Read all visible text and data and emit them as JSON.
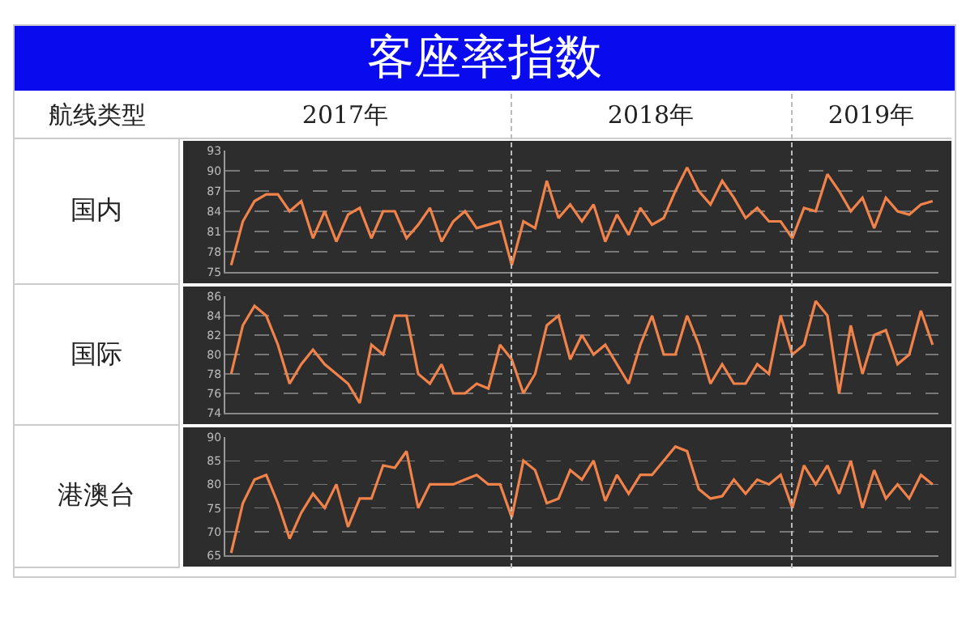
{
  "chart_data": [
    {
      "type": "line",
      "title": "客座率指数",
      "annotations": [
        "航线类型",
        "2017年",
        "2018年",
        "2019年"
      ],
      "ylabel": "国内",
      "tick_labels": "y",
      "grid": "y",
      "marker": "none",
      "line_style": "solid",
      "categories": [
        null,
        null,
        null,
        null,
        null,
        null,
        null,
        null,
        null,
        null,
        null,
        null,
        null,
        null,
        null,
        null,
        null,
        null,
        null,
        null,
        null,
        null,
        null,
        null,
        null,
        null,
        null,
        null,
        null,
        null,
        null,
        null,
        null,
        null,
        null,
        null,
        null,
        null,
        null,
        null,
        null,
        null,
        null,
        null,
        null,
        null,
        null,
        null,
        null,
        null,
        null,
        null,
        null,
        null,
        null,
        null,
        null,
        null,
        null,
        null,
        null
      ],
      "series": [
        {
          "color": "#f0824a",
          "values": [
            76,
            82.5,
            85.5,
            86.5,
            86.5,
            84,
            85.5,
            80,
            84,
            79.5,
            83.5,
            84.5,
            80,
            84,
            84,
            80,
            82,
            84.5,
            79.5,
            82.5,
            84,
            81.5,
            82,
            82.5,
            76,
            82.5,
            81.5,
            88.5,
            83,
            85,
            82.5,
            85,
            79.5,
            83.5,
            80.5,
            84.5,
            82,
            83,
            87,
            90.5,
            87,
            85,
            88.5,
            86,
            83,
            84.5,
            82.5,
            82.5,
            80,
            84.5,
            84,
            89.5,
            87,
            84,
            86,
            81.5,
            86,
            84,
            83.5,
            85,
            85.5
          ]
        }
      ],
      "ylim": [
        75,
        93
      ],
      "yticks": [
        75,
        78,
        81,
        84,
        87,
        90,
        93
      ]
    },
    {
      "type": "line",
      "ylabel": "国际",
      "tick_labels": "y",
      "grid": "y",
      "marker": "none",
      "line_style": "solid",
      "categories": [
        null,
        null,
        null,
        null,
        null,
        null,
        null,
        null,
        null,
        null,
        null,
        null,
        null,
        null,
        null,
        null,
        null,
        null,
        null,
        null,
        null,
        null,
        null,
        null,
        null,
        null,
        null,
        null,
        null,
        null,
        null,
        null,
        null,
        null,
        null,
        null,
        null,
        null,
        null,
        null,
        null,
        null,
        null,
        null,
        null,
        null,
        null,
        null,
        null,
        null,
        null,
        null,
        null,
        null,
        null,
        null,
        null,
        null,
        null,
        null,
        null
      ],
      "series": [
        {
          "color": "#f0824a",
          "values": [
            78,
            83,
            85,
            84,
            81,
            77,
            79,
            80.5,
            79,
            78,
            77,
            75,
            81,
            80,
            84,
            84,
            78,
            77,
            79,
            76,
            76,
            77,
            76.5,
            81,
            79.5,
            76,
            78,
            83,
            84,
            79.5,
            82,
            80,
            81,
            79,
            77,
            81,
            84,
            80,
            80,
            84,
            81,
            77,
            79,
            77,
            77,
            79,
            78,
            84,
            80,
            81,
            85.5,
            84,
            76,
            83,
            78,
            82,
            82.5,
            79,
            80,
            84.5,
            81
          ]
        }
      ],
      "ylim": [
        74,
        86
      ],
      "yticks": [
        74,
        76,
        78,
        80,
        82,
        84,
        86
      ]
    },
    {
      "type": "line",
      "ylabel": "港澳台",
      "tick_labels": "y",
      "grid": "y",
      "marker": "none",
      "line_style": "solid",
      "categories": [
        null,
        null,
        null,
        null,
        null,
        null,
        null,
        null,
        null,
        null,
        null,
        null,
        null,
        null,
        null,
        null,
        null,
        null,
        null,
        null,
        null,
        null,
        null,
        null,
        null,
        null,
        null,
        null,
        null,
        null,
        null,
        null,
        null,
        null,
        null,
        null,
        null,
        null,
        null,
        null,
        null,
        null,
        null,
        null,
        null,
        null,
        null,
        null,
        null,
        null,
        null,
        null,
        null,
        null,
        null,
        null,
        null,
        null,
        null,
        null,
        null
      ],
      "series": [
        {
          "color": "#f0824a",
          "values": [
            65.5,
            76,
            81,
            82,
            76,
            68.5,
            74,
            78,
            75,
            80,
            71,
            77,
            77,
            84,
            83.5,
            87,
            75,
            80,
            80,
            80,
            81,
            82,
            80,
            80,
            73,
            85,
            83,
            76,
            77,
            83,
            81,
            85,
            76.5,
            82,
            78,
            82,
            82,
            85,
            88,
            87,
            79,
            77,
            77.5,
            81,
            78,
            81,
            80,
            82,
            75,
            84,
            80,
            84,
            78,
            85,
            75,
            83,
            77,
            80,
            77,
            82,
            80
          ]
        }
      ],
      "ylim": [
        65,
        90
      ],
      "yticks": [
        65,
        70,
        75,
        80,
        85,
        90
      ]
    }
  ]
}
